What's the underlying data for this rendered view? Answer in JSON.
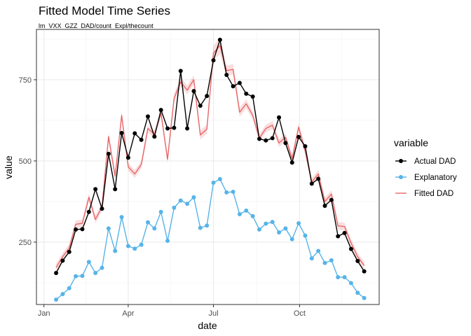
{
  "chart_data": {
    "type": "line",
    "title": "Fitted Model Time Series",
    "subtitle": "lm_VXX_GZZ_DAD/count_Expl/thecount",
    "xlabel": "date",
    "ylabel": "value",
    "x_ticks": [
      {
        "label": "Jan",
        "value": "2019-01-01"
      },
      {
        "label": "Apr",
        "value": "2019-04-01"
      },
      {
        "label": "Jul",
        "value": "2019-07-01"
      },
      {
        "label": "Oct",
        "value": "2019-10-01"
      }
    ],
    "y_ticks": [
      250,
      500,
      750
    ],
    "xlim": [
      "2018-12-24",
      "2019-12-25"
    ],
    "ylim": [
      58,
      905
    ],
    "grid": true,
    "legend": {
      "title": "variable",
      "position": "right",
      "items": [
        {
          "label": "Actual DAD",
          "color": "#000000",
          "marker": true
        },
        {
          "label": "Explanatory",
          "color": "#56B4E9",
          "marker": true
        },
        {
          "label": "Fitted DAD",
          "color": "#E8686B",
          "marker": false
        }
      ]
    },
    "x": [
      "2019-01-14",
      "2019-01-21",
      "2019-01-28",
      "2019-02-04",
      "2019-02-11",
      "2019-02-18",
      "2019-02-25",
      "2019-03-04",
      "2019-03-11",
      "2019-03-18",
      "2019-03-25",
      "2019-04-01",
      "2019-04-08",
      "2019-04-15",
      "2019-04-22",
      "2019-04-29",
      "2019-05-06",
      "2019-05-13",
      "2019-05-20",
      "2019-05-27",
      "2019-06-03",
      "2019-06-10",
      "2019-06-17",
      "2019-06-24",
      "2019-07-01",
      "2019-07-08",
      "2019-07-15",
      "2019-07-22",
      "2019-07-29",
      "2019-08-05",
      "2019-08-12",
      "2019-08-19",
      "2019-08-26",
      "2019-09-02",
      "2019-09-09",
      "2019-09-16",
      "2019-09-23",
      "2019-09-30",
      "2019-10-07",
      "2019-10-14",
      "2019-10-21",
      "2019-10-28",
      "2019-11-04",
      "2019-11-11",
      "2019-11-18",
      "2019-11-25",
      "2019-12-02",
      "2019-12-09"
    ],
    "series": [
      {
        "name": "Actual DAD",
        "color": "#000000",
        "markers": true,
        "values": [
          155,
          193,
          220,
          289,
          290,
          343,
          413,
          353,
          522,
          413,
          586,
          510,
          585,
          565,
          637,
          575,
          657,
          600,
          602,
          777,
          600,
          715,
          670,
          700,
          810,
          873,
          765,
          730,
          740,
          707,
          698,
          568,
          563,
          570,
          634,
          555,
          495,
          574,
          545,
          430,
          445,
          362,
          380,
          268,
          278,
          229,
          192,
          160
        ]
      },
      {
        "name": "Explanatory",
        "color": "#56B4E9",
        "markers": true,
        "values": [
          73,
          90,
          108,
          145,
          146,
          189,
          155,
          171,
          292,
          223,
          327,
          238,
          230,
          242,
          311,
          292,
          343,
          254,
          356,
          378,
          368,
          388,
          294,
          301,
          433,
          444,
          403,
          405,
          336,
          347,
          330,
          289,
          307,
          312,
          280,
          292,
          259,
          308,
          270,
          200,
          223,
          186,
          194,
          142,
          142,
          124,
          94,
          78
        ]
      },
      {
        "name": "Fitted DAD",
        "color": "#E8686B",
        "markers": false,
        "values": [
          172,
          205,
          232,
          305,
          308,
          388,
          320,
          359,
          575,
          453,
          640,
          482,
          460,
          489,
          600,
          582,
          647,
          505,
          693,
          743,
          718,
          750,
          580,
          598,
          832,
          855,
          778,
          782,
          650,
          676,
          640,
          570,
          600,
          610,
          555,
          573,
          507,
          604,
          530,
          435,
          460,
          375,
          398,
          300,
          298,
          247,
          205,
          178
        ],
        "band_halfwidth": [
          12,
          12,
          12,
          12,
          12,
          12,
          12,
          12,
          12,
          12,
          14,
          12,
          12,
          12,
          12,
          12,
          12,
          12,
          14,
          14,
          14,
          14,
          14,
          14,
          22,
          26,
          16,
          16,
          14,
          14,
          12,
          12,
          12,
          12,
          12,
          12,
          12,
          12,
          12,
          12,
          12,
          12,
          12,
          12,
          12,
          12,
          12,
          12
        ]
      }
    ]
  }
}
